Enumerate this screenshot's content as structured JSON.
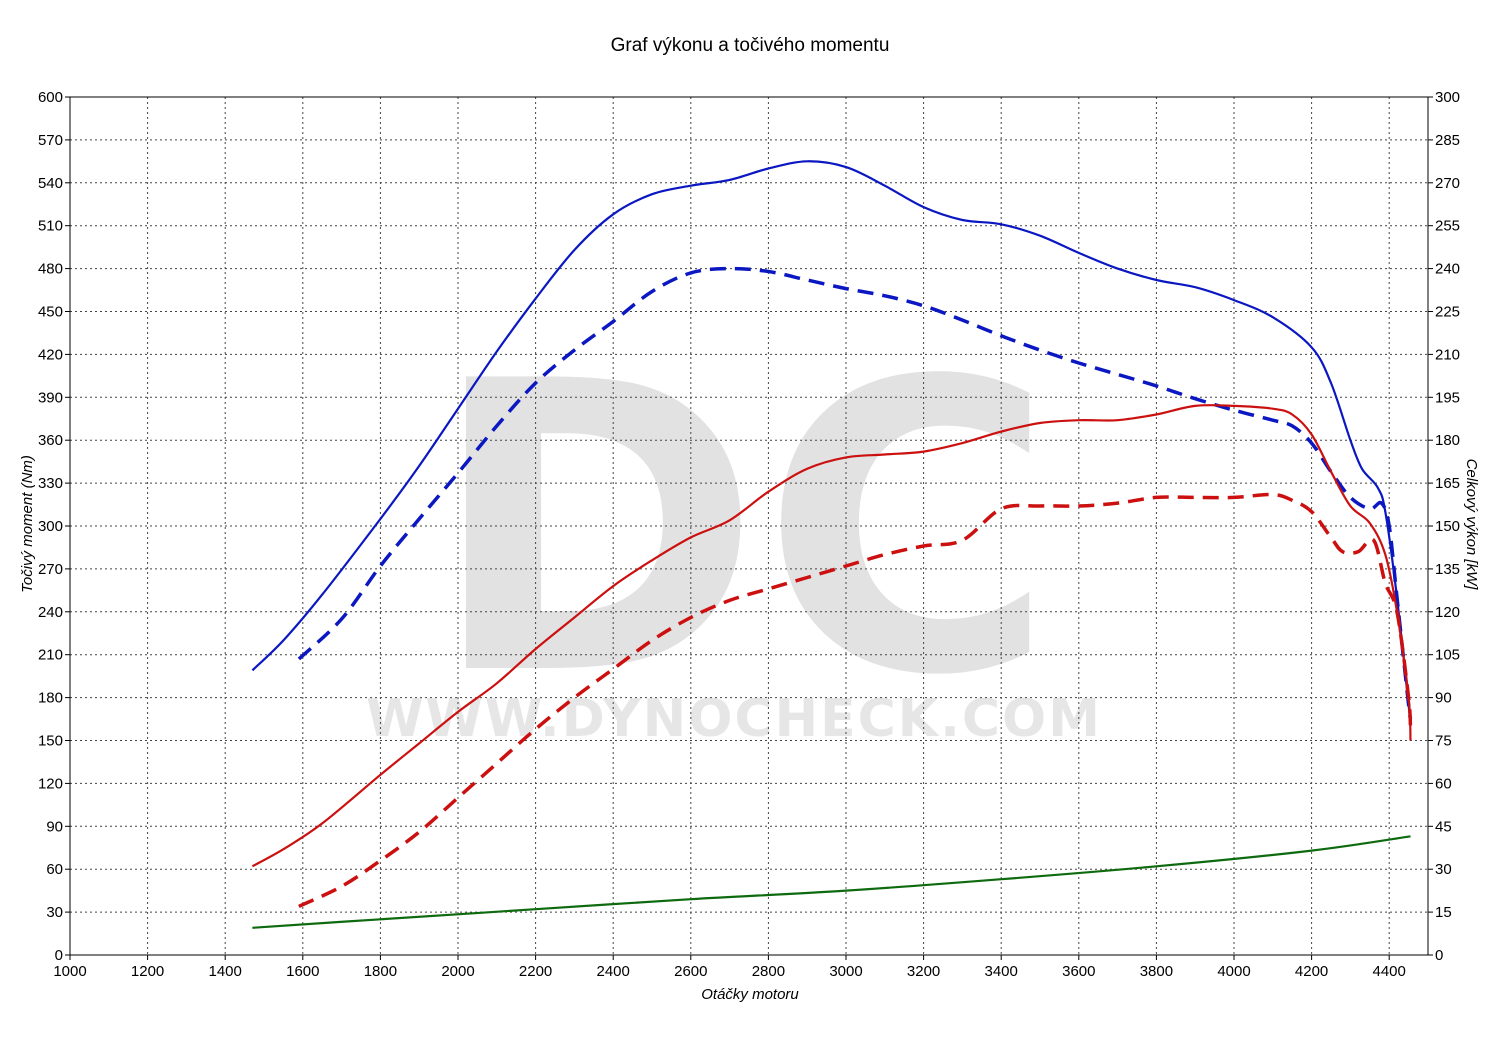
{
  "chart_data": {
    "type": "line",
    "title": "Graf výkonu a točivého momentu",
    "xlabel": "Otáčky motoru",
    "ylabel_left": "Točivý moment (Nm)",
    "ylabel_right": "Celkový výkon [kW]",
    "watermark_logo": "DC",
    "watermark_url": "WWW.DYNOCHECK.COM",
    "xlim": [
      1000,
      4500
    ],
    "ylim_left": [
      0,
      600
    ],
    "ylim_right": [
      0,
      300
    ],
    "x_ticks": [
      1000,
      1200,
      1400,
      1600,
      1800,
      2000,
      2200,
      2400,
      2600,
      2800,
      3000,
      3200,
      3400,
      3600,
      3800,
      4000,
      4200,
      4400
    ],
    "y_ticks_left": [
      0,
      30,
      60,
      90,
      120,
      150,
      180,
      210,
      240,
      270,
      300,
      330,
      360,
      390,
      420,
      450,
      480,
      510,
      540,
      570,
      600
    ],
    "y_ticks_right": [
      0,
      15,
      30,
      45,
      60,
      75,
      90,
      105,
      120,
      135,
      150,
      165,
      180,
      195,
      210,
      225,
      240,
      255,
      270,
      285,
      300
    ],
    "grid": true,
    "series": [
      {
        "axis": "left",
        "color": "#0b18c2",
        "dashed": false,
        "points": [
          [
            1470,
            199
          ],
          [
            1550,
            220
          ],
          [
            1650,
            252
          ],
          [
            1800,
            305
          ],
          [
            1900,
            342
          ],
          [
            2000,
            382
          ],
          [
            2100,
            422
          ],
          [
            2200,
            459
          ],
          [
            2300,
            493
          ],
          [
            2400,
            518
          ],
          [
            2500,
            532
          ],
          [
            2600,
            538
          ],
          [
            2700,
            542
          ],
          [
            2800,
            550
          ],
          [
            2900,
            555
          ],
          [
            3000,
            551
          ],
          [
            3100,
            538
          ],
          [
            3200,
            523
          ],
          [
            3300,
            514
          ],
          [
            3400,
            511
          ],
          [
            3500,
            503
          ],
          [
            3600,
            491
          ],
          [
            3700,
            480
          ],
          [
            3800,
            472
          ],
          [
            3900,
            467
          ],
          [
            4000,
            458
          ],
          [
            4100,
            446
          ],
          [
            4200,
            425
          ],
          [
            4250,
            400
          ],
          [
            4300,
            360
          ],
          [
            4330,
            340
          ],
          [
            4370,
            327
          ],
          [
            4390,
            310
          ],
          [
            4420,
            250
          ],
          [
            4450,
            175
          ],
          [
            4455,
            160
          ]
        ]
      },
      {
        "axis": "left",
        "color": "#0b18c2",
        "dashed": true,
        "points": [
          [
            1590,
            207
          ],
          [
            1700,
            235
          ],
          [
            1800,
            272
          ],
          [
            1900,
            305
          ],
          [
            2000,
            337
          ],
          [
            2100,
            370
          ],
          [
            2200,
            400
          ],
          [
            2300,
            423
          ],
          [
            2400,
            443
          ],
          [
            2500,
            464
          ],
          [
            2600,
            477
          ],
          [
            2700,
            480
          ],
          [
            2800,
            478
          ],
          [
            2900,
            472
          ],
          [
            3000,
            466
          ],
          [
            3100,
            461
          ],
          [
            3200,
            454
          ],
          [
            3300,
            444
          ],
          [
            3400,
            433
          ],
          [
            3500,
            423
          ],
          [
            3600,
            414
          ],
          [
            3700,
            406
          ],
          [
            3800,
            398
          ],
          [
            3900,
            389
          ],
          [
            4000,
            381
          ],
          [
            4100,
            374
          ],
          [
            4150,
            370
          ],
          [
            4200,
            358
          ],
          [
            4250,
            338
          ],
          [
            4300,
            320
          ],
          [
            4350,
            312
          ],
          [
            4380,
            316
          ],
          [
            4400,
            300
          ],
          [
            4420,
            250
          ],
          [
            4450,
            175
          ],
          [
            4455,
            165
          ]
        ]
      },
      {
        "axis": "right",
        "color": "#cc1010",
        "dashed": false,
        "points": [
          [
            1470,
            31
          ],
          [
            1550,
            37
          ],
          [
            1650,
            46
          ],
          [
            1800,
            63
          ],
          [
            1900,
            74
          ],
          [
            2000,
            85
          ],
          [
            2100,
            95
          ],
          [
            2200,
            107
          ],
          [
            2300,
            118
          ],
          [
            2400,
            129
          ],
          [
            2500,
            138
          ],
          [
            2600,
            146
          ],
          [
            2700,
            152
          ],
          [
            2800,
            162
          ],
          [
            2900,
            170
          ],
          [
            3000,
            174
          ],
          [
            3100,
            175
          ],
          [
            3200,
            176
          ],
          [
            3300,
            179
          ],
          [
            3400,
            183
          ],
          [
            3500,
            186
          ],
          [
            3600,
            187
          ],
          [
            3700,
            187
          ],
          [
            3800,
            189
          ],
          [
            3900,
            192
          ],
          [
            4000,
            192
          ],
          [
            4100,
            191
          ],
          [
            4150,
            189
          ],
          [
            4200,
            182
          ],
          [
            4250,
            169
          ],
          [
            4300,
            157
          ],
          [
            4350,
            151
          ],
          [
            4390,
            140
          ],
          [
            4420,
            120
          ],
          [
            4450,
            90
          ],
          [
            4455,
            75
          ]
        ]
      },
      {
        "axis": "right",
        "color": "#cc1010",
        "dashed": true,
        "points": [
          [
            1590,
            17
          ],
          [
            1700,
            24
          ],
          [
            1800,
            33
          ],
          [
            1900,
            43
          ],
          [
            2000,
            55
          ],
          [
            2100,
            67
          ],
          [
            2200,
            79
          ],
          [
            2300,
            90
          ],
          [
            2400,
            100
          ],
          [
            2500,
            110
          ],
          [
            2600,
            118
          ],
          [
            2700,
            124
          ],
          [
            2800,
            128
          ],
          [
            2900,
            132
          ],
          [
            3000,
            136
          ],
          [
            3100,
            140
          ],
          [
            3200,
            143
          ],
          [
            3300,
            145
          ],
          [
            3400,
            156
          ],
          [
            3500,
            157
          ],
          [
            3600,
            157
          ],
          [
            3700,
            158
          ],
          [
            3800,
            160
          ],
          [
            3900,
            160
          ],
          [
            4000,
            160
          ],
          [
            4100,
            161
          ],
          [
            4150,
            159
          ],
          [
            4200,
            155
          ],
          [
            4250,
            146
          ],
          [
            4280,
            141
          ],
          [
            4320,
            141
          ],
          [
            4360,
            145
          ],
          [
            4390,
            130
          ],
          [
            4420,
            120
          ],
          [
            4450,
            90
          ],
          [
            4455,
            78
          ]
        ]
      },
      {
        "axis": "right",
        "color": "#0e6a0e",
        "dashed": false,
        "points": [
          [
            1470,
            9.5
          ],
          [
            1800,
            12.5
          ],
          [
            2200,
            16
          ],
          [
            2600,
            19.5
          ],
          [
            3000,
            22.5
          ],
          [
            3400,
            26.5
          ],
          [
            3800,
            31
          ],
          [
            4200,
            36.5
          ],
          [
            4455,
            41.5
          ]
        ]
      }
    ]
  }
}
